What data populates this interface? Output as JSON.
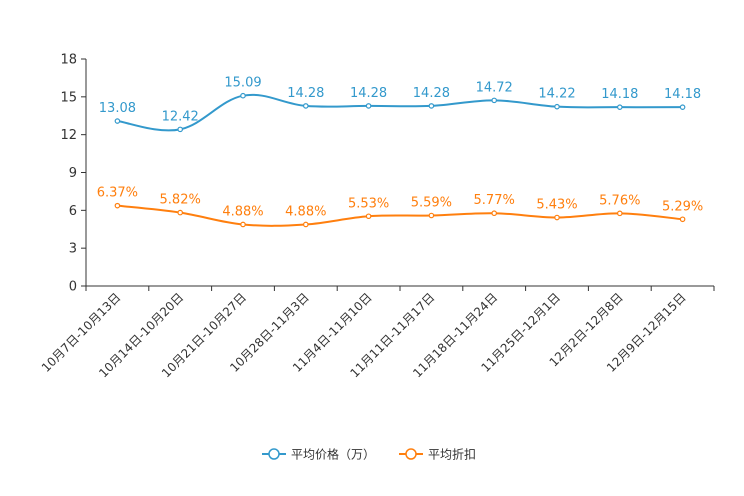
{
  "chart_data": {
    "type": "line",
    "categories": [
      "10月7日-10月13日",
      "10月14日-10月20日",
      "10月21日-10月27日",
      "10月28日-11月3日",
      "11月4日-11月10日",
      "11月11日-11月17日",
      "11月18日-11月24日",
      "11月25日-12月1日",
      "12月2日-12月8日",
      "12月9日-12月15日"
    ],
    "ylim": [
      0,
      18
    ],
    "yticks": [
      0,
      3,
      6,
      9,
      12,
      15,
      18
    ],
    "series": [
      {
        "name": "平均价格（万）",
        "color": "#3399cc",
        "values": [
          13.08,
          12.42,
          15.09,
          14.28,
          14.28,
          14.28,
          14.72,
          14.22,
          14.18,
          14.18
        ],
        "labels": [
          "13.08",
          "12.42",
          "15.09",
          "14.28",
          "14.28",
          "14.28",
          "14.72",
          "14.22",
          "14.18",
          "14.18"
        ]
      },
      {
        "name": "平均折扣",
        "color": "#ff7f0e",
        "values": [
          6.37,
          5.82,
          4.88,
          4.88,
          5.53,
          5.59,
          5.77,
          5.43,
          5.76,
          5.29
        ],
        "labels": [
          "6.37%",
          "5.82%",
          "4.88%",
          "4.88%",
          "5.53%",
          "5.59%",
          "5.77%",
          "5.43%",
          "5.76%",
          "5.29%"
        ]
      }
    ],
    "legend_position": "bottom-center",
    "grid": false
  }
}
